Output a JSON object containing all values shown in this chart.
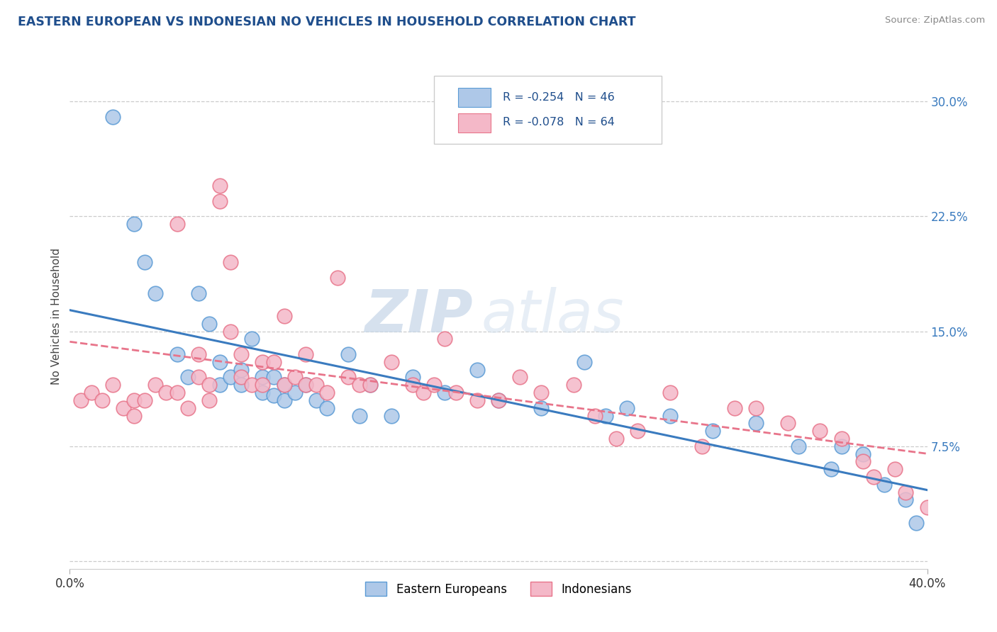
{
  "title": "EASTERN EUROPEAN VS INDONESIAN NO VEHICLES IN HOUSEHOLD CORRELATION CHART",
  "source": "Source: ZipAtlas.com",
  "ylabel": "No Vehicles in Household",
  "yticks": [
    0.0,
    0.075,
    0.15,
    0.225,
    0.3
  ],
  "ytick_labels": [
    "",
    "7.5%",
    "15.0%",
    "22.5%",
    "30.0%"
  ],
  "xlim": [
    0.0,
    0.4
  ],
  "ylim": [
    -0.005,
    0.325
  ],
  "legend_r1": "R = -0.254   N = 46",
  "legend_r2": "R = -0.078   N = 64",
  "legend_label1": "Eastern Europeans",
  "legend_label2": "Indonesians",
  "blue_color": "#aec8e8",
  "pink_color": "#f4b8c8",
  "blue_edge_color": "#5b9bd5",
  "pink_edge_color": "#e8748a",
  "blue_line_color": "#3a7bbf",
  "pink_line_color": "#e8748a",
  "background_color": "#ffffff",
  "grid_color": "#cccccc",
  "watermark_zip": "ZIP",
  "watermark_atlas": "atlas",
  "title_color": "#1f4e8c",
  "source_color": "#888888",
  "ytick_color": "#3a7bbf",
  "blue_scatter_x": [
    0.02,
    0.03,
    0.035,
    0.04,
    0.05,
    0.055,
    0.06,
    0.065,
    0.07,
    0.07,
    0.075,
    0.08,
    0.08,
    0.085,
    0.09,
    0.09,
    0.095,
    0.095,
    0.1,
    0.1,
    0.105,
    0.11,
    0.115,
    0.12,
    0.13,
    0.135,
    0.14,
    0.15,
    0.16,
    0.175,
    0.19,
    0.2,
    0.22,
    0.24,
    0.25,
    0.26,
    0.28,
    0.3,
    0.32,
    0.34,
    0.355,
    0.36,
    0.37,
    0.38,
    0.39,
    0.395
  ],
  "blue_scatter_y": [
    0.29,
    0.22,
    0.195,
    0.175,
    0.135,
    0.12,
    0.175,
    0.155,
    0.13,
    0.115,
    0.12,
    0.125,
    0.115,
    0.145,
    0.12,
    0.11,
    0.12,
    0.108,
    0.115,
    0.105,
    0.11,
    0.115,
    0.105,
    0.1,
    0.135,
    0.095,
    0.115,
    0.095,
    0.12,
    0.11,
    0.125,
    0.105,
    0.1,
    0.13,
    0.095,
    0.1,
    0.095,
    0.085,
    0.09,
    0.075,
    0.06,
    0.075,
    0.07,
    0.05,
    0.04,
    0.025
  ],
  "pink_scatter_x": [
    0.005,
    0.01,
    0.015,
    0.02,
    0.025,
    0.03,
    0.03,
    0.035,
    0.04,
    0.045,
    0.05,
    0.05,
    0.055,
    0.06,
    0.06,
    0.065,
    0.065,
    0.07,
    0.07,
    0.075,
    0.075,
    0.08,
    0.08,
    0.085,
    0.09,
    0.09,
    0.095,
    0.1,
    0.1,
    0.105,
    0.11,
    0.11,
    0.115,
    0.12,
    0.125,
    0.13,
    0.135,
    0.14,
    0.15,
    0.16,
    0.165,
    0.17,
    0.175,
    0.18,
    0.19,
    0.2,
    0.21,
    0.22,
    0.235,
    0.245,
    0.255,
    0.265,
    0.28,
    0.295,
    0.31,
    0.32,
    0.335,
    0.35,
    0.36,
    0.37,
    0.375,
    0.385,
    0.39,
    0.4
  ],
  "pink_scatter_y": [
    0.105,
    0.11,
    0.105,
    0.115,
    0.1,
    0.105,
    0.095,
    0.105,
    0.115,
    0.11,
    0.22,
    0.11,
    0.1,
    0.135,
    0.12,
    0.115,
    0.105,
    0.245,
    0.235,
    0.195,
    0.15,
    0.135,
    0.12,
    0.115,
    0.13,
    0.115,
    0.13,
    0.16,
    0.115,
    0.12,
    0.135,
    0.115,
    0.115,
    0.11,
    0.185,
    0.12,
    0.115,
    0.115,
    0.13,
    0.115,
    0.11,
    0.115,
    0.145,
    0.11,
    0.105,
    0.105,
    0.12,
    0.11,
    0.115,
    0.095,
    0.08,
    0.085,
    0.11,
    0.075,
    0.1,
    0.1,
    0.09,
    0.085,
    0.08,
    0.065,
    0.055,
    0.06,
    0.045,
    0.035
  ]
}
